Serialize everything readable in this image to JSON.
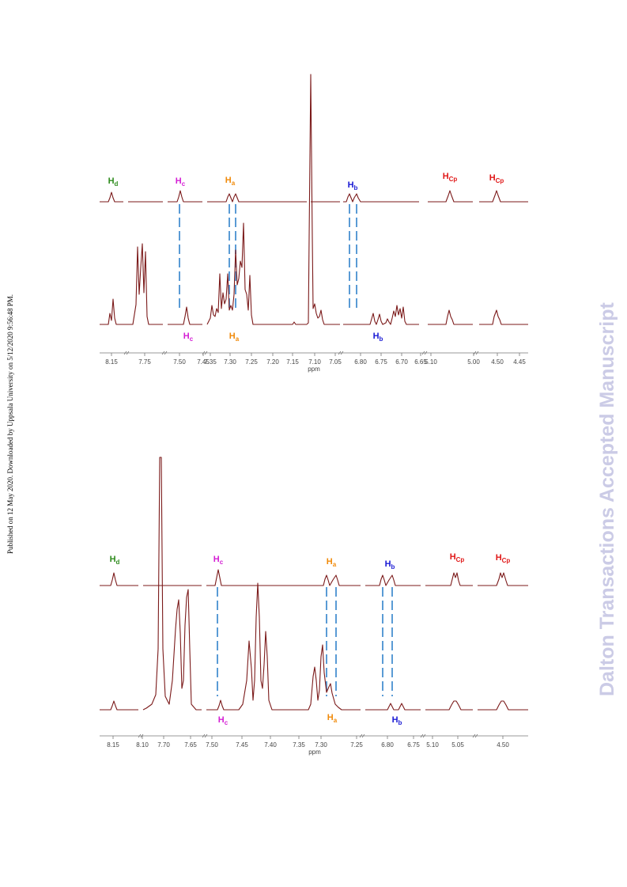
{
  "side_note": "Published on 12 May 2020. Downloaded by Uppsala University on 5/12/2020 9:56:48 PM.",
  "watermark": "Dalton Transactions Accepted Manuscript",
  "colors": {
    "trace": "#7b1a1a",
    "guide": "#5a9bd5",
    "Hd": "#2e8b1d",
    "Hc": "#d41fd4",
    "Ha": "#f08a0a",
    "Hb": "#1a1ad4",
    "Hcp": "#e01818"
  },
  "figures": [
    {
      "axis_label": "ppm",
      "tick_labels": [
        "8.15",
        "7.75",
        "7.50",
        "7.45",
        "7.35",
        "7.30",
        "7.25",
        "7.20",
        "7.15",
        "7.10",
        "7.05",
        "6.80",
        "6.75",
        "6.70",
        "6.65",
        "5.10",
        "5.00",
        "4.50",
        "4.45"
      ],
      "upper_labels": [
        {
          "main": "H",
          "sub": "d",
          "key": "Hd"
        },
        {
          "main": "H",
          "sub": "c",
          "key": "Hc"
        },
        {
          "main": "H",
          "sub": "a",
          "key": "Ha"
        },
        {
          "main": "H",
          "sub": "b",
          "key": "Hb"
        },
        {
          "main": "H",
          "sub": "Cp",
          "key": "Hcp"
        },
        {
          "main": "H",
          "sub": "Cp",
          "key": "Hcp"
        }
      ],
      "lower_labels": [
        {
          "main": "H",
          "sub": "c",
          "key": "Hc"
        },
        {
          "main": "H",
          "sub": "a",
          "key": "Ha"
        },
        {
          "main": "H",
          "sub": "b",
          "key": "Hb"
        }
      ]
    },
    {
      "axis_label": "ppm",
      "tick_labels": [
        "8.15",
        "8.10",
        "7.70",
        "7.65",
        "7.50",
        "7.45",
        "7.40",
        "7.35",
        "7.30",
        "7.25",
        "6.80",
        "6.75",
        "5.10",
        "5.05",
        "4.50"
      ],
      "upper_labels": [
        {
          "main": "H",
          "sub": "d",
          "key": "Hd"
        },
        {
          "main": "H",
          "sub": "c",
          "key": "Hc"
        },
        {
          "main": "H",
          "sub": "a",
          "key": "Ha"
        },
        {
          "main": "H",
          "sub": "b",
          "key": "Hb"
        },
        {
          "main": "H",
          "sub": "Cp",
          "key": "Hcp"
        },
        {
          "main": "H",
          "sub": "Cp",
          "key": "Hcp"
        }
      ],
      "lower_labels": [
        {
          "main": "H",
          "sub": "c",
          "key": "Hc"
        },
        {
          "main": "H",
          "sub": "a",
          "key": "Ha"
        },
        {
          "main": "H",
          "sub": "b",
          "key": "Hb"
        }
      ]
    }
  ]
}
